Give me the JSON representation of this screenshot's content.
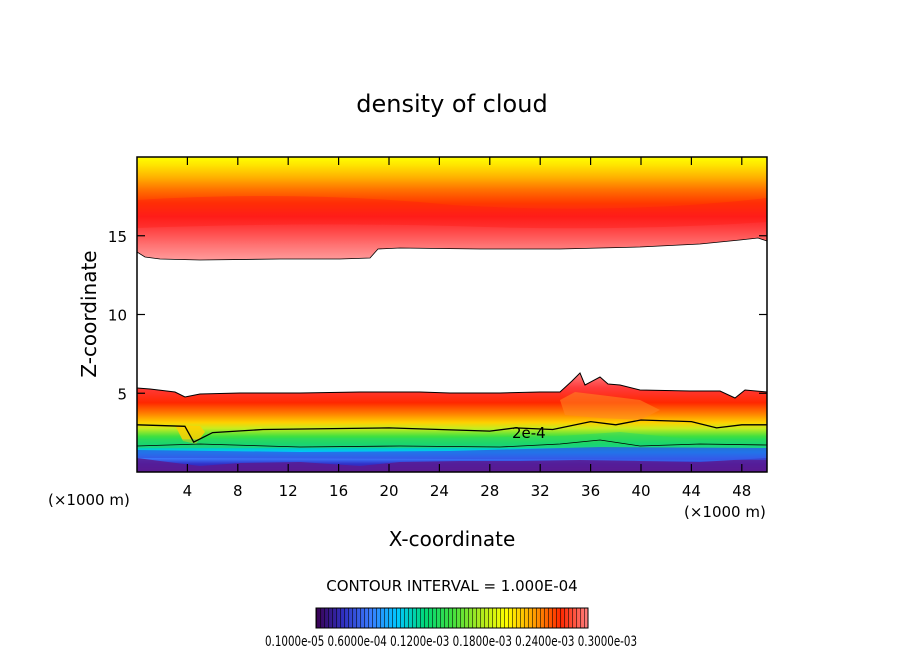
{
  "chart_data": {
    "type": "heatmap",
    "title": "density of cloud",
    "xlabel": "X-coordinate",
    "ylabel": "Z-coordinate",
    "x_unit_left": "(×1000 m)",
    "x_unit_right": "(×1000 m)",
    "xlim": [
      0,
      50
    ],
    "ylim": [
      0,
      20
    ],
    "x_ticks": [
      4,
      8,
      12,
      16,
      20,
      24,
      28,
      32,
      36,
      40,
      44,
      48
    ],
    "y_ticks": [
      5,
      10,
      15
    ],
    "x_tick_labels": [
      "4",
      "8",
      "12",
      "16",
      "20",
      "24",
      "28",
      "32",
      "36",
      "40",
      "44",
      "48"
    ],
    "y_tick_labels": [
      "5",
      "10",
      "15"
    ],
    "contour_label": "2e-4",
    "contour_interval_text": "CONTOUR INTERVAL = 1.000E-04",
    "colorbar_text": "0.1000e-05 0.6000e-04 0.1200e-03 0.1800e-03 0.2400e-03 0.3000e-03",
    "colorbar_range": [
      1e-06,
      0.0003
    ],
    "colormap": [
      "#3a0050",
      "#3030c0",
      "#3a7cff",
      "#00c8ff",
      "#00d878",
      "#40e040",
      "#a8e820",
      "#ffff00",
      "#ffa000",
      "#ff2800",
      "#ff8080"
    ],
    "upper_layer": {
      "bottom_km": 13.5,
      "top_km": 20,
      "core_km": 15.8
    },
    "lower_layer": {
      "bottom_km": 0.3,
      "top_km": 5.2
    },
    "contour_2e4_line": {
      "x": [
        0,
        3.8,
        4.5,
        6,
        10,
        20,
        28,
        30,
        33,
        36,
        38,
        40,
        44,
        46,
        48,
        50
      ],
      "z": [
        3.0,
        2.9,
        1.9,
        2.5,
        2.7,
        2.8,
        2.6,
        2.8,
        2.7,
        3.2,
        3.0,
        3.3,
        3.2,
        2.8,
        3.0,
        3.0
      ]
    }
  }
}
